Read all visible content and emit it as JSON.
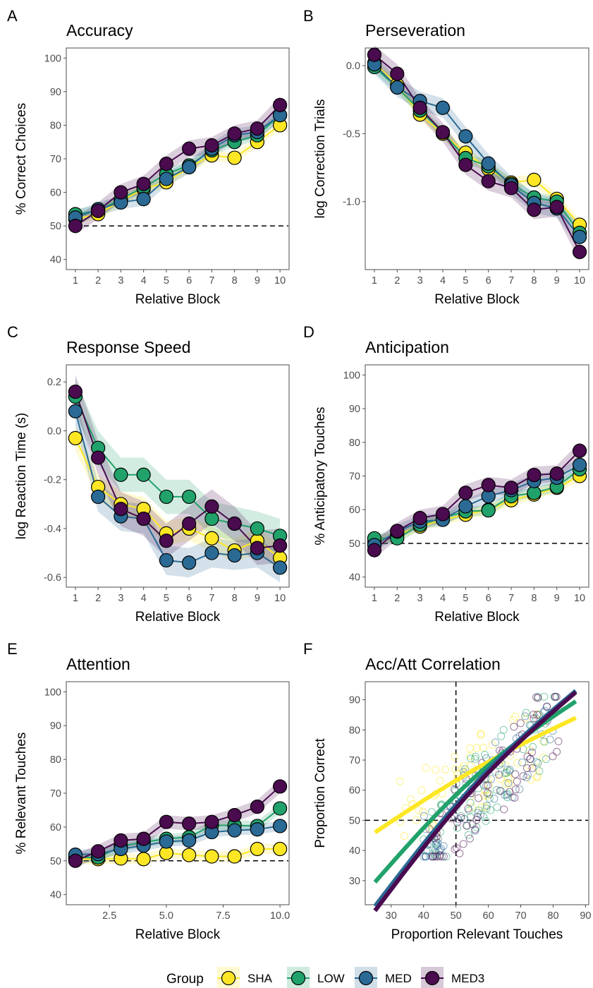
{
  "legend": {
    "title": "Group",
    "items": [
      {
        "key": "SHA",
        "label": "SHA",
        "color": "#FDE725"
      },
      {
        "key": "LOW",
        "label": "LOW",
        "color": "#21A26B"
      },
      {
        "key": "MED",
        "label": "MED",
        "color": "#2A6A95"
      },
      {
        "key": "MED3",
        "label": "MED3",
        "color": "#4A0B4F"
      }
    ]
  },
  "chart_data": [
    {
      "panel": "A",
      "type": "line",
      "title": "Accuracy",
      "xlabel": "Relative Block",
      "ylabel": "% Correct Choices",
      "xlim": [
        0.6,
        10.4
      ],
      "ylim": [
        37,
        103
      ],
      "xticks": [
        1,
        2,
        3,
        4,
        5,
        6,
        7,
        8,
        9,
        10
      ],
      "xticklabels": [
        "1",
        "2",
        "3",
        "4",
        "5",
        "6",
        "7",
        "8",
        "9",
        "10"
      ],
      "yticks": [
        40,
        50,
        60,
        70,
        80,
        90,
        100
      ],
      "yticklabels": [
        "40",
        "50",
        "60",
        "70",
        "80",
        "90",
        "100"
      ],
      "hline": 50,
      "vline": null,
      "x": [
        1,
        2,
        3,
        4,
        5,
        6,
        7,
        8,
        9,
        10
      ],
      "series": [
        {
          "name": "SHA",
          "values": [
            52,
            53.5,
            57.5,
            61,
            63,
            67.5,
            71,
            70.3,
            75,
            80
          ],
          "band": 1.5
        },
        {
          "name": "LOW",
          "values": [
            53.5,
            54.5,
            58,
            61.5,
            65.5,
            68,
            72.5,
            75,
            77,
            83
          ],
          "band": 1.5
        },
        {
          "name": "MED",
          "values": [
            52.5,
            55,
            57,
            58,
            64,
            67.5,
            73,
            77,
            78,
            83
          ],
          "band": 2
        },
        {
          "name": "MED3",
          "values": [
            50,
            54.5,
            60,
            62.5,
            68.5,
            73,
            74,
            77.5,
            79,
            86
          ],
          "band": 2.5
        }
      ]
    },
    {
      "panel": "B",
      "type": "line",
      "title": "Perseveration",
      "xlabel": "Relative Block",
      "ylabel": "log Correction Trials",
      "xlim": [
        0.6,
        10.4
      ],
      "ylim": [
        -1.5,
        0.13
      ],
      "xticks": [
        1,
        2,
        3,
        4,
        5,
        6,
        7,
        8,
        9,
        10
      ],
      "xticklabels": [
        "1",
        "2",
        "3",
        "4",
        "5",
        "6",
        "7",
        "8",
        "9",
        "10"
      ],
      "yticks": [
        0,
        -0.5,
        -1
      ],
      "yticklabels": [
        "0.0",
        "-0.5",
        "-1.0"
      ],
      "hline": null,
      "vline": null,
      "x": [
        1,
        2,
        3,
        4,
        5,
        6,
        7,
        8,
        9,
        10
      ],
      "series": [
        {
          "name": "SHA",
          "values": [
            0.02,
            -0.14,
            -0.36,
            -0.5,
            -0.64,
            -0.76,
            -0.86,
            -0.84,
            -0.98,
            -1.17
          ],
          "band": 0.04
        },
        {
          "name": "LOW",
          "values": [
            -0.01,
            -0.16,
            -0.33,
            -0.49,
            -0.68,
            -0.74,
            -0.87,
            -0.97,
            -1.0,
            -1.23
          ],
          "band": 0.04
        },
        {
          "name": "MED",
          "values": [
            0.01,
            -0.16,
            -0.26,
            -0.31,
            -0.52,
            -0.72,
            -0.88,
            -1.01,
            -1.05,
            -1.26
          ],
          "band": 0.07
        },
        {
          "name": "MED3",
          "values": [
            0.08,
            -0.06,
            -0.31,
            -0.49,
            -0.73,
            -0.85,
            -0.9,
            -1.06,
            -1.04,
            -1.37
          ],
          "band": 0.07
        }
      ]
    },
    {
      "panel": "C",
      "type": "line",
      "title": "Response Speed",
      "xlabel": "Relative Block",
      "ylabel": "log Reaction Time (s)",
      "xlim": [
        0.6,
        10.4
      ],
      "ylim": [
        -0.64,
        0.27
      ],
      "xticks": [
        1,
        2,
        3,
        4,
        5,
        6,
        7,
        8,
        9,
        10
      ],
      "xticklabels": [
        "1",
        "2",
        "3",
        "4",
        "5",
        "6",
        "7",
        "8",
        "9",
        "10"
      ],
      "yticks": [
        0.2,
        0,
        -0.2,
        -0.4,
        -0.6
      ],
      "yticklabels": [
        "0.2",
        "0.0",
        "-0.2",
        "-0.4",
        "-0.6"
      ],
      "hline": null,
      "vline": null,
      "x": [
        1,
        2,
        3,
        4,
        5,
        6,
        7,
        8,
        9,
        10
      ],
      "series": [
        {
          "name": "SHA",
          "values": [
            -0.03,
            -0.23,
            -0.3,
            -0.32,
            -0.42,
            -0.4,
            -0.44,
            -0.49,
            -0.45,
            -0.52
          ],
          "band": 0.05
        },
        {
          "name": "LOW",
          "values": [
            0.14,
            -0.07,
            -0.18,
            -0.18,
            -0.27,
            -0.27,
            -0.36,
            -0.38,
            -0.4,
            -0.43
          ],
          "band": 0.07
        },
        {
          "name": "MED",
          "values": [
            0.08,
            -0.27,
            -0.35,
            -0.36,
            -0.53,
            -0.54,
            -0.5,
            -0.51,
            -0.5,
            -0.56
          ],
          "band": 0.06
        },
        {
          "name": "MED3",
          "values": [
            0.16,
            -0.11,
            -0.32,
            -0.36,
            -0.45,
            -0.38,
            -0.31,
            -0.38,
            -0.48,
            -0.47
          ],
          "band": 0.07
        }
      ]
    },
    {
      "panel": "D",
      "type": "line",
      "title": "Anticipation",
      "xlabel": "Relative Block",
      "ylabel": "% Anticipatory Touches",
      "xlim": [
        0.6,
        10.4
      ],
      "ylim": [
        37,
        103
      ],
      "xticks": [
        1,
        2,
        3,
        4,
        5,
        6,
        7,
        8,
        9,
        10
      ],
      "xticklabels": [
        "1",
        "2",
        "3",
        "4",
        "5",
        "6",
        "7",
        "8",
        "9",
        "10"
      ],
      "yticks": [
        40,
        50,
        60,
        70,
        80,
        90,
        100
      ],
      "yticklabels": [
        "40",
        "50",
        "60",
        "70",
        "80",
        "90",
        "100"
      ],
      "hline": 50,
      "vline": null,
      "x": [
        1,
        2,
        3,
        4,
        5,
        6,
        7,
        8,
        9,
        10
      ],
      "series": [
        {
          "name": "SHA",
          "values": [
            50.5,
            52.5,
            55,
            57,
            58.5,
            60,
            62.8,
            64.5,
            66.5,
            70
          ],
          "band": 1.5
        },
        {
          "name": "LOW",
          "values": [
            51.5,
            51.5,
            55.5,
            57.5,
            59.5,
            59.8,
            64,
            65,
            66.8,
            72
          ],
          "band": 1.5
        },
        {
          "name": "MED",
          "values": [
            49.5,
            53.5,
            56.5,
            57,
            61,
            64,
            65.8,
            68.5,
            69.5,
            73.3
          ],
          "band": 2
        },
        {
          "name": "MED3",
          "values": [
            48,
            53.7,
            57.5,
            58.7,
            65,
            67.3,
            66.5,
            70.3,
            70.7,
            77.5
          ],
          "band": 2.5
        }
      ]
    },
    {
      "panel": "E",
      "type": "line",
      "title": "Attention",
      "xlabel": "Relative Block",
      "ylabel": "% Relevant Touches",
      "xlim": [
        0.6,
        10.4
      ],
      "ylim": [
        37,
        103
      ],
      "xticks": [
        2.5,
        5,
        7.5,
        10
      ],
      "xticklabels": [
        "2.5",
        "5.0",
        "7.5",
        "10.0"
      ],
      "yticks": [
        40,
        50,
        60,
        70,
        80,
        90,
        100
      ],
      "yticklabels": [
        "40",
        "50",
        "60",
        "70",
        "80",
        "90",
        "100"
      ],
      "hline": 50,
      "vline": null,
      "x": [
        1,
        2,
        3,
        4,
        5,
        6,
        7,
        8,
        9,
        10
      ],
      "series": [
        {
          "name": "SHA",
          "values": [
            50.5,
            50.5,
            50.7,
            50.5,
            52.3,
            51.7,
            51.3,
            51.3,
            53.5,
            53.5
          ],
          "band": 1.5
        },
        {
          "name": "LOW",
          "values": [
            51,
            51,
            54.3,
            55.5,
            56.5,
            57,
            60.5,
            60.5,
            60.3,
            65.5
          ],
          "band": 1.5
        },
        {
          "name": "MED",
          "values": [
            51.8,
            52,
            53.5,
            54.5,
            55.7,
            56,
            58.5,
            59,
            59.3,
            60.3
          ],
          "band": 1.5
        },
        {
          "name": "MED3",
          "values": [
            50,
            52.8,
            56,
            56.5,
            61.5,
            61,
            61.5,
            63.5,
            66,
            72
          ],
          "band": 2
        }
      ]
    },
    {
      "panel": "F",
      "type": "scatter",
      "title": "Acc/Att Correlation",
      "xlabel": "Proportion Relevant Touches",
      "ylabel": "Proportion Correct",
      "xlim": [
        22,
        91
      ],
      "ylim": [
        22,
        96
      ],
      "xticks": [
        30,
        40,
        50,
        60,
        70,
        80,
        90
      ],
      "xticklabels": [
        "30",
        "40",
        "50",
        "60",
        "70",
        "80",
        "90"
      ],
      "yticks": [
        30,
        40,
        50,
        60,
        70,
        80,
        90
      ],
      "yticklabels": [
        "30",
        "40",
        "50",
        "60",
        "70",
        "80",
        "90"
      ],
      "hline": 50,
      "vline": 50,
      "series": [
        {
          "name": "SHA",
          "fit": {
            "x": [
              25,
              87
            ],
            "y": [
              46,
              84
            ]
          }
        },
        {
          "name": "LOW",
          "fit": {
            "x": [
              25,
              87
            ],
            "y": [
              29.5,
              89.5
            ]
          }
        },
        {
          "name": "MED",
          "fit": {
            "x": [
              25,
              87
            ],
            "y": [
              21.5,
              93
            ]
          }
        },
        {
          "name": "MED3",
          "fit": {
            "x": [
              25,
              87
            ],
            "y": [
              20,
              92.5
            ]
          }
        }
      ]
    }
  ]
}
